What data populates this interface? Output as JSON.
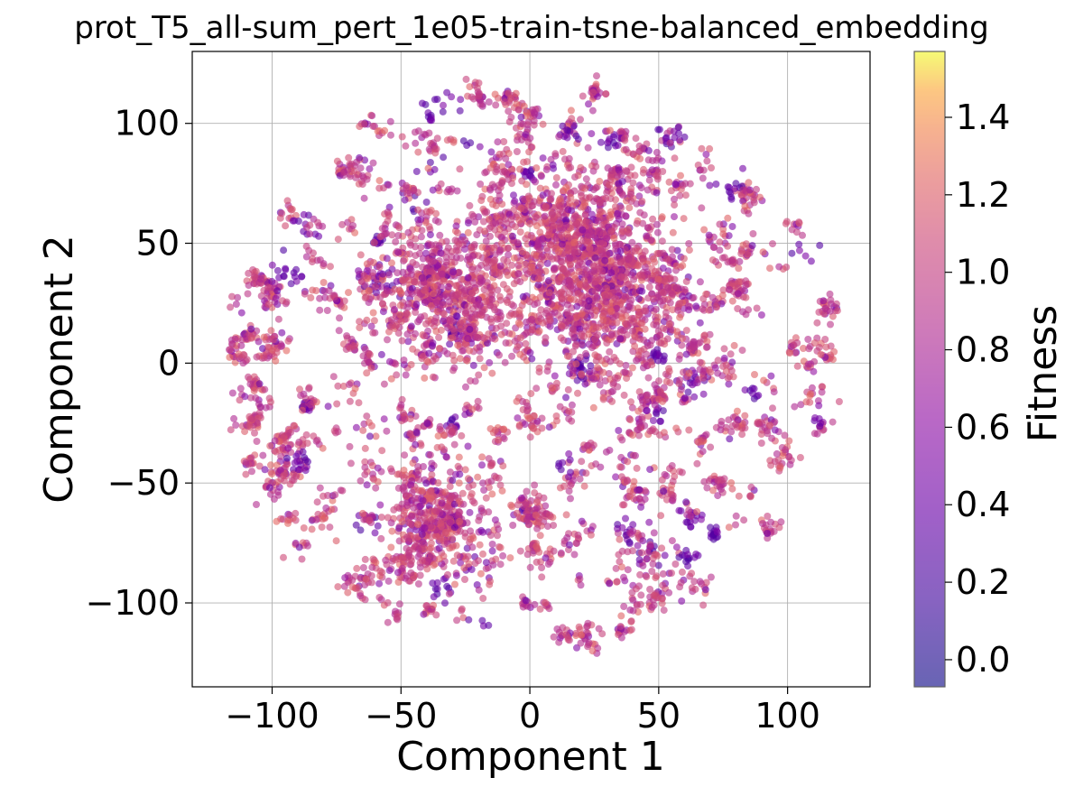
{
  "chart_data": {
    "type": "scatter",
    "title": "prot_T5_all-sum_pert_1e05-train-tsne-balanced_embedding",
    "xlabel": "Component 1",
    "ylabel": "Component 2",
    "xlim": [
      -131,
      132
    ],
    "ylim": [
      -135,
      130
    ],
    "xticks": [
      -100,
      -50,
      0,
      50,
      100
    ],
    "yticks": [
      -100,
      -50,
      0,
      50,
      100
    ],
    "grid": true,
    "colormap": "plasma",
    "point_alpha": 0.6,
    "colorbar": {
      "label": "Fitness",
      "range": [
        -0.07,
        1.57
      ],
      "ticks": [
        0.0,
        0.2,
        0.4,
        0.6,
        0.8,
        1.0,
        1.2,
        1.4
      ]
    },
    "points": {
      "count_estimate": 6000,
      "layout": "roughly circular t-SNE cloud of many small clusters, radius ~118 around (0, 0)",
      "dense_regions": [
        {
          "x": 15,
          "y": 55,
          "note": "dense upper-center cluster"
        },
        {
          "x": -30,
          "y": 30,
          "note": "dense central-left cluster"
        },
        {
          "x": 30,
          "y": 25,
          "note": "dense central-right cluster"
        },
        {
          "x": -37,
          "y": -65,
          "note": "dense lower-left cluster"
        }
      ],
      "fitness_distribution": "mostly 0.8 to 1.3 (orange/salmon); scattered low-fitness clusters 0.2 to 0.5 (purple)"
    }
  }
}
